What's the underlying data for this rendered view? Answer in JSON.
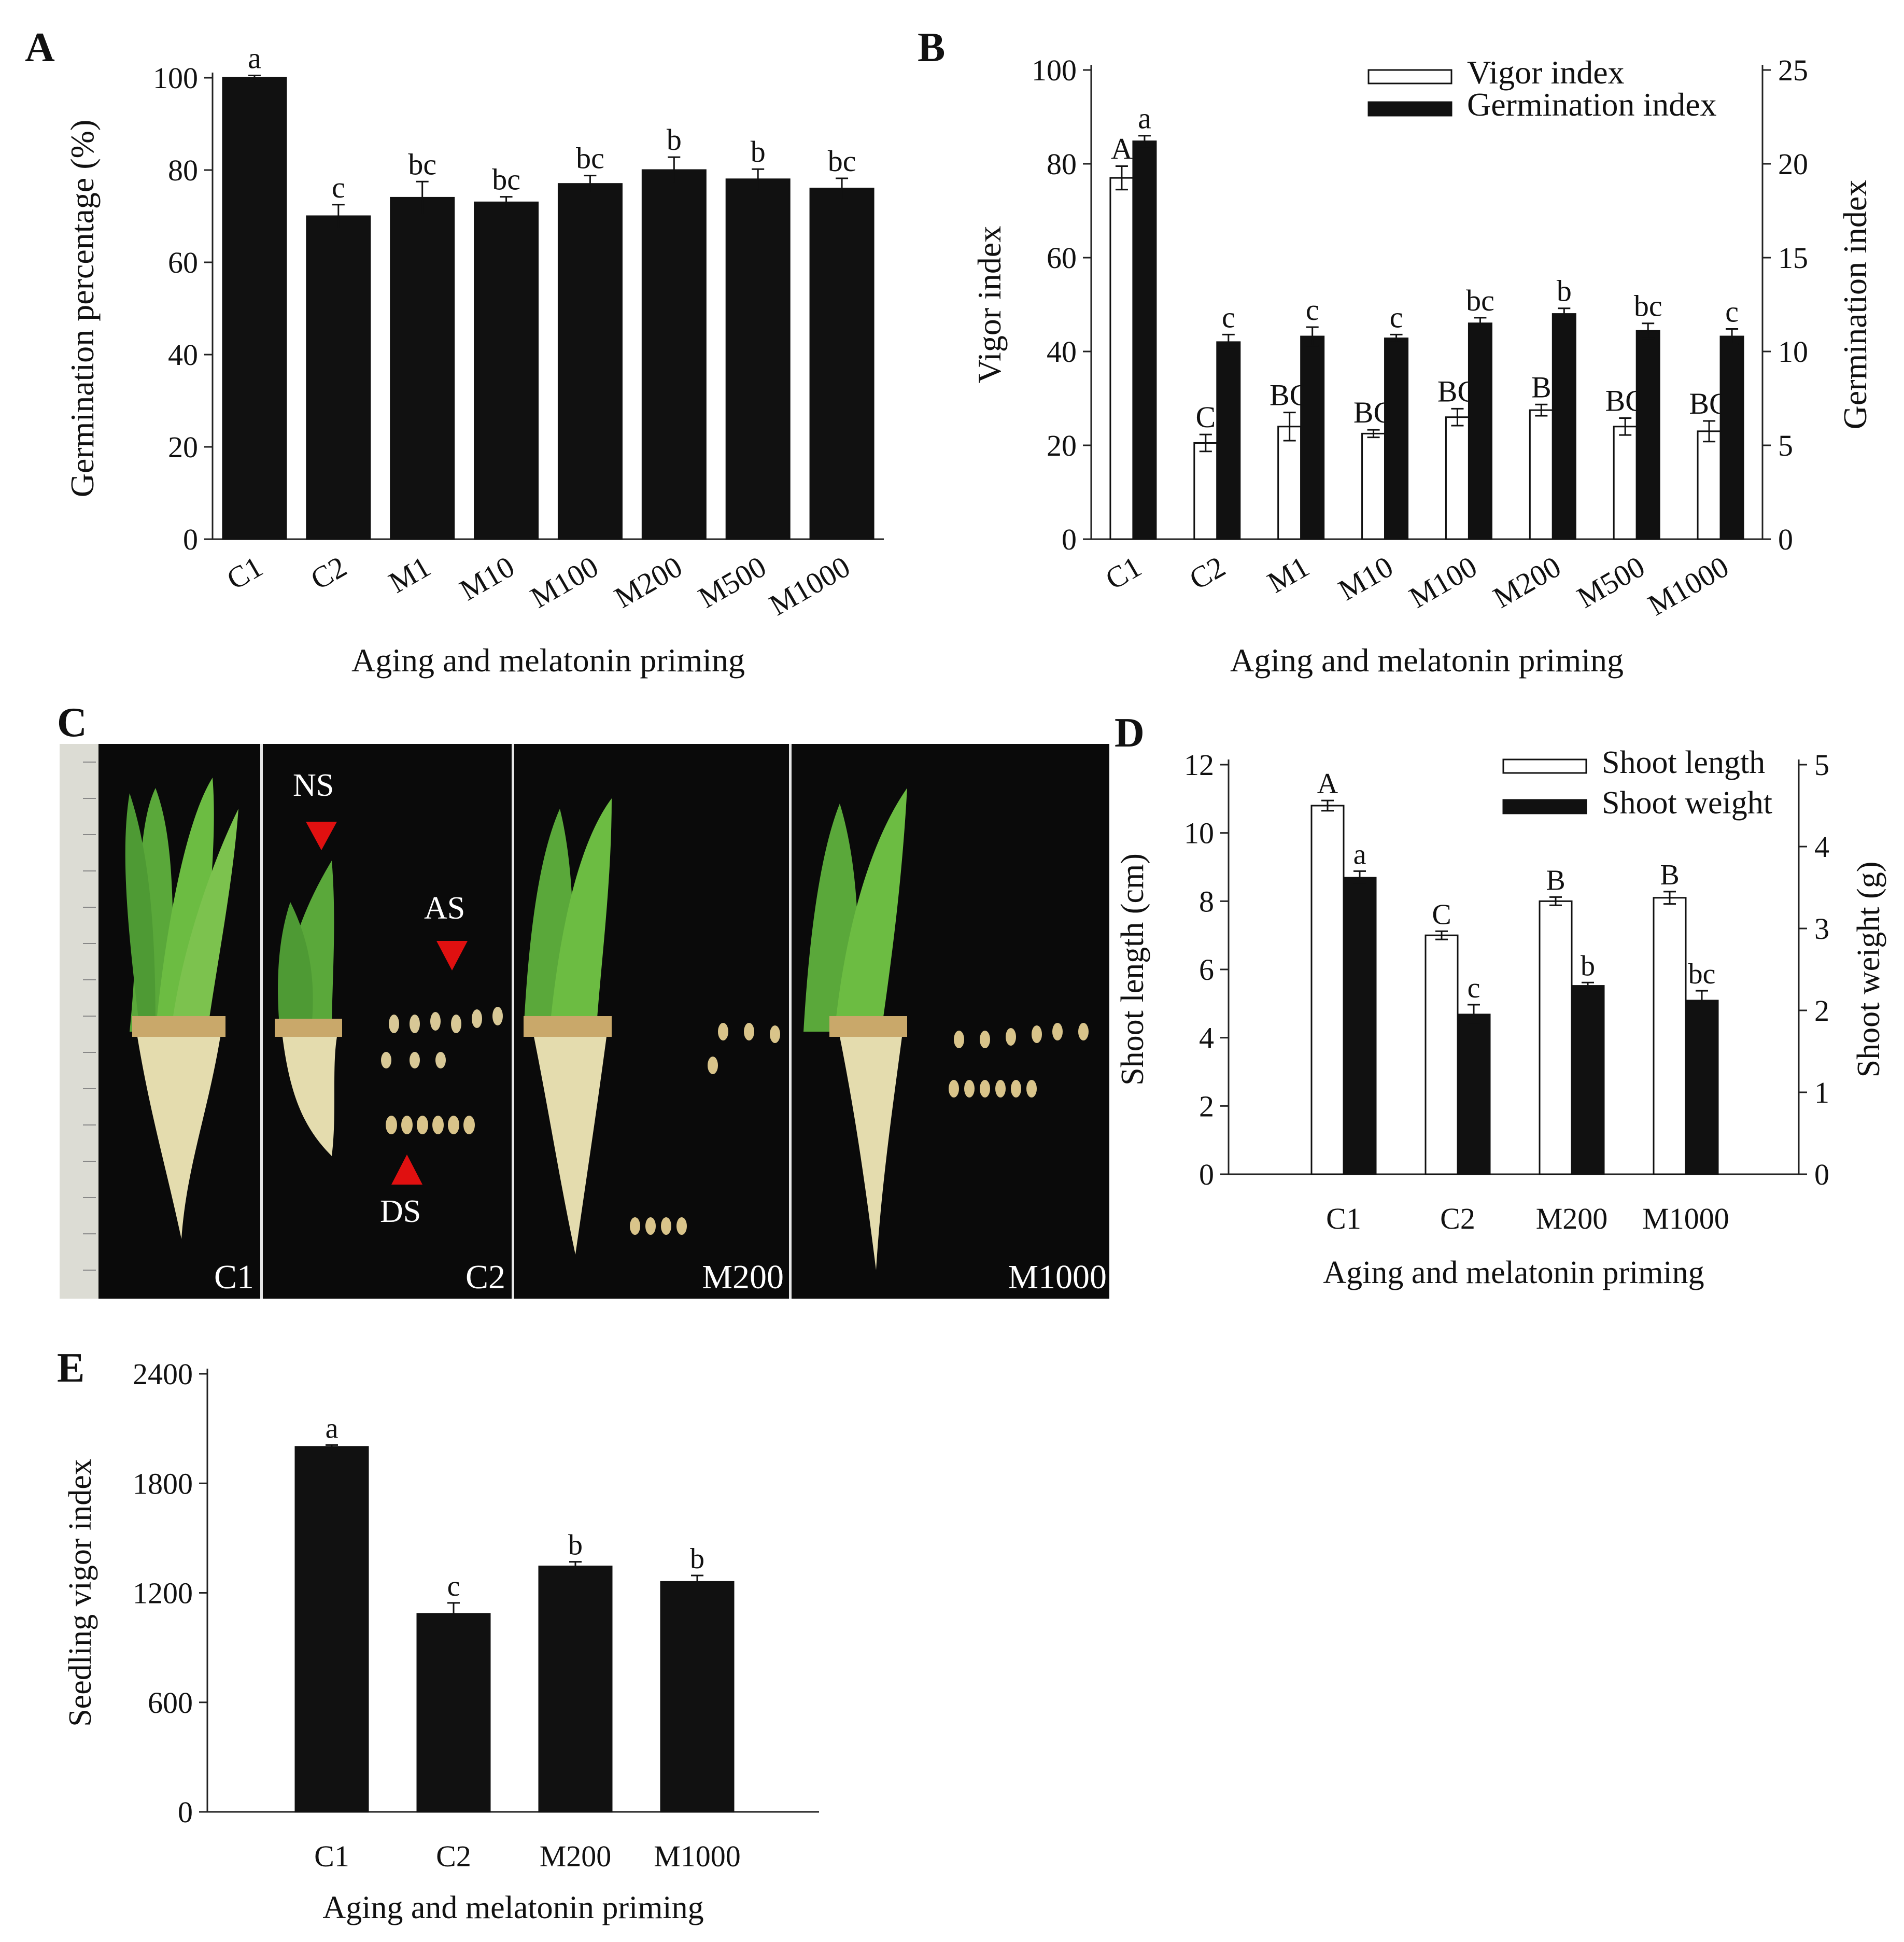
{
  "panel_labels": {
    "a": "A",
    "b": "B",
    "c": "C",
    "d": "D",
    "e": "E"
  },
  "chart_data": [
    {
      "id": "A",
      "type": "bar",
      "categories": [
        "C1",
        "C2",
        "M1",
        "M10",
        "M100",
        "M200",
        "M500",
        "M1000"
      ],
      "series": [
        {
          "name": "Germination percentage",
          "values": [
            100,
            70,
            74,
            73,
            77,
            80,
            78,
            76
          ],
          "errors": [
            0.5,
            2.5,
            3.5,
            1.2,
            1.8,
            2.8,
            2.2,
            2.2
          ],
          "letters": [
            "a",
            "c",
            "bc",
            "bc",
            "bc",
            "b",
            "b",
            "bc"
          ],
          "color": "#111111"
        }
      ],
      "xlabel": "Aging and melatonin priming",
      "ylabel": "Germination percentage (%)",
      "ylim": [
        0,
        100
      ],
      "yticks": [
        0,
        20,
        40,
        60,
        80,
        100
      ]
    },
    {
      "id": "B",
      "type": "bar",
      "categories": [
        "C1",
        "C2",
        "M1",
        "M10",
        "M100",
        "M200",
        "M500",
        "M1000"
      ],
      "series": [
        {
          "name": "Vigor index",
          "axis": "left",
          "values": [
            77,
            20.5,
            24,
            22.5,
            26,
            27.5,
            24,
            23
          ],
          "errors": [
            2.5,
            1.8,
            3,
            0.8,
            1.8,
            1.2,
            1.8,
            2.2
          ],
          "letters": [
            "A",
            "C",
            "BC",
            "BC",
            "BC",
            "B",
            "BC",
            "BC"
          ],
          "color": "#ffffff"
        },
        {
          "name": "Germination index",
          "axis": "right",
          "values": [
            21.2,
            10.5,
            10.8,
            10.7,
            11.5,
            12.0,
            11.1,
            10.8
          ],
          "errors": [
            0.3,
            0.4,
            0.5,
            0.2,
            0.3,
            0.3,
            0.4,
            0.4
          ],
          "letters": [
            "a",
            "c",
            "c",
            "c",
            "bc",
            "b",
            "bc",
            "c"
          ],
          "color": "#111111"
        }
      ],
      "xlabel": "Aging and melatonin priming",
      "ylabel": "Vigor index",
      "ylabel_right": "Germination index",
      "ylim": [
        0,
        100
      ],
      "ylim_right": [
        0,
        25
      ],
      "yticks": [
        0,
        20,
        40,
        60,
        80,
        100
      ],
      "yticks_right": [
        0,
        5,
        10,
        15,
        20,
        25
      ],
      "legend": "top-right"
    },
    {
      "id": "D",
      "type": "bar",
      "categories": [
        "C1",
        "C2",
        "M200",
        "M1000"
      ],
      "series": [
        {
          "name": "Shoot length",
          "axis": "left",
          "values": [
            10.8,
            7.0,
            8.0,
            8.1
          ],
          "errors": [
            0.15,
            0.12,
            0.12,
            0.18
          ],
          "letters": [
            "A",
            "C",
            "B",
            "B"
          ],
          "color": "#ffffff"
        },
        {
          "name": "Shoot weight",
          "axis": "right",
          "values": [
            3.62,
            1.95,
            2.3,
            2.12
          ],
          "errors": [
            0.08,
            0.12,
            0.04,
            0.12
          ],
          "letters": [
            "a",
            "c",
            "b",
            "bc"
          ],
          "color": "#111111"
        }
      ],
      "xlabel": "Aging and melatonin priming",
      "ylabel": "Shoot length (cm)",
      "ylabel_right": "Shoot weight (g)",
      "ylim": [
        0,
        12
      ],
      "ylim_right": [
        0,
        5
      ],
      "yticks": [
        0,
        2,
        4,
        6,
        8,
        10,
        12
      ],
      "yticks_right": [
        0,
        1,
        2,
        3,
        4,
        5
      ],
      "legend": "top-right"
    },
    {
      "id": "E",
      "type": "bar",
      "categories": [
        "C1",
        "C2",
        "M200",
        "M1000"
      ],
      "series": [
        {
          "name": "Seedling vigor index",
          "values": [
            2000,
            1085,
            1345,
            1260
          ],
          "errors": [
            10,
            60,
            25,
            35
          ],
          "letters": [
            "a",
            "c",
            "b",
            "b"
          ],
          "color": "#111111"
        }
      ],
      "xlabel": "Aging and melatonin priming",
      "ylabel": "Seedling vigor index",
      "ylim": [
        0,
        2400
      ],
      "yticks": [
        0,
        600,
        1200,
        1800,
        2400
      ]
    }
  ],
  "photo": {
    "panel_labels": [
      "C1",
      "C2",
      "M200",
      "M1000"
    ],
    "annotations": {
      "ns": "NS",
      "as": "AS",
      "ds": "DS"
    },
    "background": "#0a0a0a",
    "marker_color": "#e01010"
  }
}
